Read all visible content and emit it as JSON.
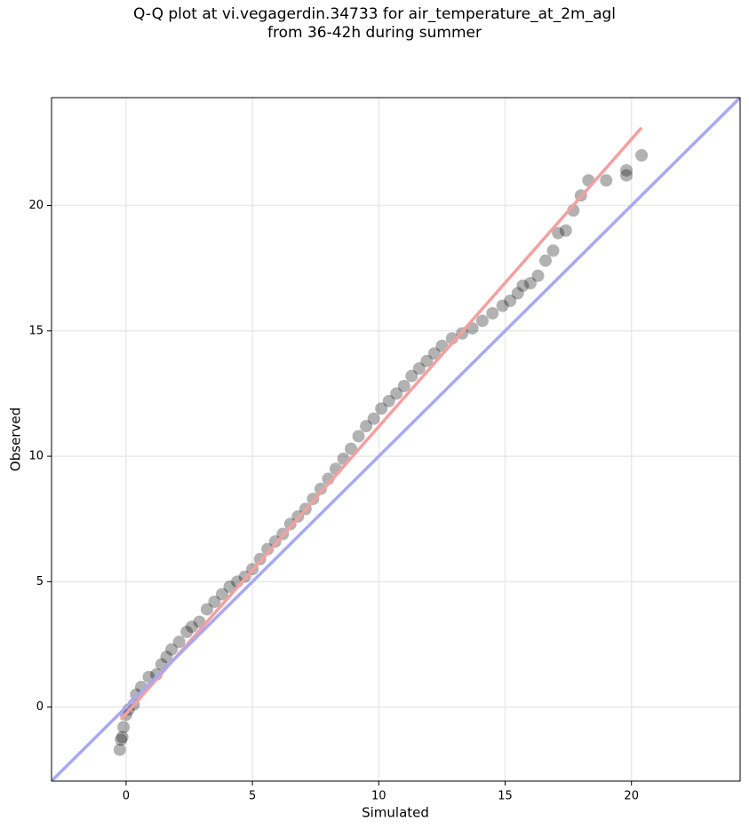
{
  "chart_data": {
    "type": "scatter",
    "title": "Q-Q plot at vi.vegagerdin.34733 for air_temperature_at_2m_agl\nfrom 36-42h during summer",
    "x_label": "Simulated",
    "y_label": "Observed",
    "xlim": [
      -2.95,
      24.3
    ],
    "ylim": [
      -2.95,
      24.3
    ],
    "xticks": [
      0,
      5,
      10,
      15,
      20
    ],
    "yticks": [
      0,
      5,
      10,
      15,
      20
    ],
    "grid": true,
    "color": "#000000",
    "alpha": 0.3,
    "x": [
      -0.25,
      -0.2,
      -0.15,
      -0.1,
      0,
      0.1,
      0.3,
      0.4,
      0.6,
      0.9,
      1.2,
      1.4,
      1.6,
      1.8,
      2.1,
      2.4,
      2.6,
      2.9,
      3.2,
      3.5,
      3.8,
      4.1,
      4.4,
      4.7,
      5.0,
      5.3,
      5.6,
      5.9,
      6.2,
      6.5,
      6.8,
      7.1,
      7.4,
      7.7,
      8.0,
      8.3,
      8.6,
      8.9,
      9.2,
      9.5,
      9.8,
      10.1,
      10.4,
      10.7,
      11.0,
      11.3,
      11.6,
      11.9,
      12.2,
      12.5,
      12.9,
      13.3,
      13.7,
      14.1,
      14.5,
      14.9,
      15.2,
      15.5,
      15.7,
      16.0,
      16.3,
      16.6,
      16.9,
      17.1,
      17.4,
      17.7,
      18.0,
      18.3,
      19.0,
      19.8,
      19.8,
      20.4
    ],
    "y": [
      -1.7,
      -1.3,
      -1.2,
      -0.8,
      -0.3,
      -0.1,
      0.1,
      0.5,
      0.8,
      1.2,
      1.3,
      1.7,
      2.0,
      2.3,
      2.6,
      3.0,
      3.2,
      3.4,
      3.9,
      4.2,
      4.5,
      4.8,
      5.0,
      5.2,
      5.5,
      5.9,
      6.3,
      6.6,
      6.9,
      7.3,
      7.6,
      7.9,
      8.3,
      8.7,
      9.1,
      9.5,
      9.9,
      10.3,
      10.8,
      11.2,
      11.5,
      11.9,
      12.2,
      12.5,
      12.8,
      13.2,
      13.5,
      13.8,
      14.1,
      14.4,
      14.7,
      14.9,
      15.1,
      15.4,
      15.7,
      16.0,
      16.2,
      16.5,
      16.8,
      16.9,
      17.2,
      17.8,
      18.2,
      18.9,
      19.0,
      19.8,
      20.4,
      21.0,
      21.0,
      21.2,
      21.4,
      22.0
    ],
    "lines": [
      {
        "color": "#f4a0a0",
        "x": [
          -0.2,
          20.4
        ],
        "y": [
          -0.5,
          23.1
        ]
      },
      {
        "color": "#a8a8f4",
        "x": [
          -3,
          25
        ],
        "y": [
          -3,
          25
        ]
      }
    ]
  }
}
